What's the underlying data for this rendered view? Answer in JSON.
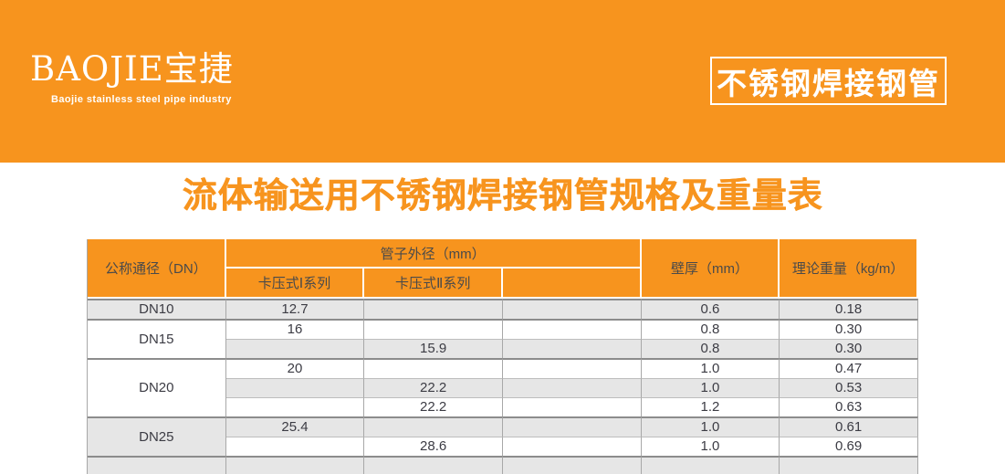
{
  "colors": {
    "brand_orange": "#F7941E",
    "row_alt_gray": "#E6E6E6",
    "grid_line_gray": "#A8A8A8",
    "group_border_dark": "#8C8C8C",
    "inner_border_light": "#BDBDBD",
    "body_text": "#3C3C44",
    "banner_text": "#FFFFFF"
  },
  "banner": {
    "logo_text": "BAOJIE宝捷",
    "logo_subtitle": "Baojie stainless steel pipe industry",
    "product_box_label": "不锈钢焊接钢管"
  },
  "page_title": "流体输送用不锈钢焊接钢管规格及重量表",
  "table": {
    "headers": {
      "dn": "公称通径（DN）",
      "outer_diameter_group": "管子外径（mm）",
      "series1": "卡压式Ⅰ系列",
      "series2": "卡压式Ⅱ系列",
      "series3": "",
      "wall_thickness": "壁厚（mm）",
      "theoretical_weight": "理论重量（kg/m）"
    },
    "rows": [
      {
        "dn": "DN10",
        "s1": "12.7",
        "s2": "",
        "s3": "",
        "wall": "0.6",
        "weight": "0.18"
      },
      {
        "dn": "DN15",
        "s1": "16",
        "s2": "",
        "s3": "",
        "wall": "0.8",
        "weight": "0.30"
      },
      {
        "s1": "",
        "s2": "15.9",
        "s3": "",
        "wall": "0.8",
        "weight": "0.30"
      },
      {
        "dn": "DN20",
        "s1": "20",
        "s2": "",
        "s3": "",
        "wall": "1.0",
        "weight": "0.47"
      },
      {
        "s1": "",
        "s2": "22.2",
        "s3": "",
        "wall": "1.0",
        "weight": "0.53"
      },
      {
        "s1": "",
        "s2": "22.2",
        "s3": "",
        "wall": "1.2",
        "weight": "0.63"
      },
      {
        "dn": "DN25",
        "s1": "25.4",
        "s2": "",
        "s3": "",
        "wall": "1.0",
        "weight": "0.61"
      },
      {
        "s1": "",
        "s2": "28.6",
        "s3": "",
        "wall": "1.0",
        "weight": "0.69"
      },
      {
        "dn": "",
        "s1": "",
        "s2": "",
        "s3": "",
        "wall": "",
        "weight": ""
      }
    ]
  }
}
